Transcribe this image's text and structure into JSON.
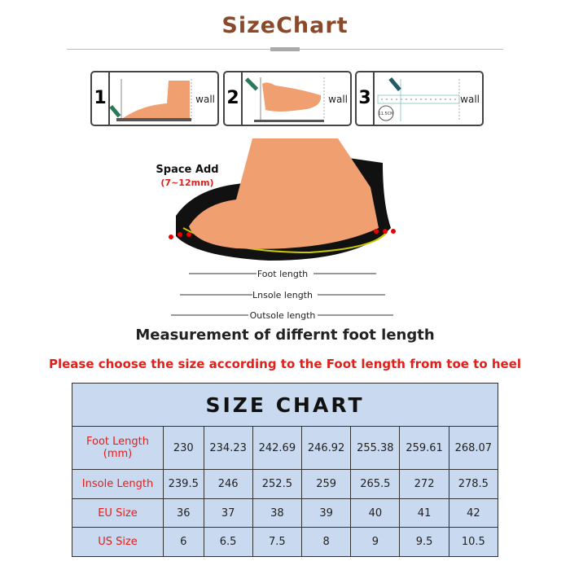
{
  "title": "SizeChart",
  "steps": [
    {
      "number": "1",
      "wall": "wall"
    },
    {
      "number": "2",
      "wall": "wall"
    },
    {
      "number": "3",
      "wall": "wall",
      "ruler_badge": "11.5CM"
    }
  ],
  "diagram": {
    "space_add": "Space Add",
    "space_range": "(7~12mm)",
    "foot_length": "Foot length",
    "insole_length": "Lnsole length",
    "outsole_length": "Outsole length"
  },
  "measurement_caption": "Measurement of differnt foot length",
  "instruction": "Please  choose the size according to the Foot length from toe to heel",
  "table": {
    "title": "SIZE CHART",
    "rows": [
      {
        "label": "Foot Length (mm)",
        "values": [
          "230",
          "234.23",
          "242.69",
          "246.92",
          "255.38",
          "259.61",
          "268.07"
        ]
      },
      {
        "label": "Insole Length",
        "values": [
          "239.5",
          "246",
          "252.5",
          "259",
          "265.5",
          "272",
          "278.5"
        ]
      },
      {
        "label": "EU Size",
        "values": [
          "36",
          "37",
          "38",
          "39",
          "40",
          "41",
          "42"
        ]
      },
      {
        "label": "US Size",
        "values": [
          "6",
          "6.5",
          "7.5",
          "8",
          "9",
          "9.5",
          "10.5"
        ]
      }
    ]
  },
  "colors": {
    "title": "#8a4a2a",
    "accent_red": "#e0201a",
    "table_bg": "#c9d9ef"
  }
}
